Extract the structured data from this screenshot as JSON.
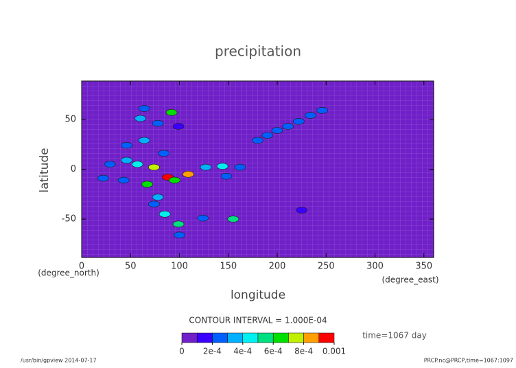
{
  "chart_data": {
    "type": "contour",
    "title": "precipitation",
    "xlabel": "longitude",
    "ylabel": "latitude",
    "xunit": "(degree_east)",
    "yunit": "(degree_north)",
    "xlim": [
      0,
      360
    ],
    "ylim": [
      -88.5,
      88.5
    ],
    "xticks": [
      0,
      50,
      100,
      150,
      200,
      250,
      300,
      350
    ],
    "yticks": [
      -50,
      0,
      50
    ],
    "contour_note": "CONTOUR INTERVAL = 1.000E-04",
    "time_label": "time=1067 day",
    "footer_left": "/usr/bin/gpview  2014-07-17",
    "footer_right": "PRCP.nc@PRCP,time=1067:1097",
    "levels": [
      0,
      0.0001,
      0.0002,
      0.0003,
      0.0004,
      0.0005,
      0.0006,
      0.0007,
      0.0008,
      0.0009,
      0.001
    ],
    "colors": [
      "#7020c8",
      "#3a00ff",
      "#0060ff",
      "#00b0ff",
      "#00f0f0",
      "#00e080",
      "#00e000",
      "#c0f000",
      "#ffa000",
      "#ff0000"
    ],
    "cbar_ticks": [
      0,
      {
        "value": 0.0002,
        "label": "2e-4"
      },
      {
        "value": 0.0004,
        "label": "4e-4"
      },
      {
        "value": 0.0006,
        "label": "6e-4"
      },
      {
        "value": 0.0008,
        "label": "8e-4"
      },
      0.001
    ],
    "points": {
      "lon": [
        92,
        64,
        60,
        78,
        99,
        64,
        46,
        84,
        46,
        29,
        57,
        74,
        88,
        95,
        109,
        127,
        144,
        162,
        67,
        43,
        22,
        78,
        74,
        85,
        99,
        124,
        155,
        148,
        100,
        180,
        190,
        200,
        211,
        222,
        234,
        246,
        225
      ],
      "lat": [
        57,
        61,
        51,
        46,
        43,
        29,
        24,
        16,
        9,
        5,
        5,
        2,
        -8,
        -11,
        -5,
        2,
        3,
        2,
        -15,
        -11,
        -9,
        -28,
        -35,
        -45,
        -55,
        -49,
        -50,
        -7,
        -66,
        29,
        34,
        39,
        43,
        48,
        54,
        59,
        -41
      ],
      "values": [
        0.0006,
        0.0002,
        0.0003,
        0.0002,
        0.0001,
        0.0003,
        0.0002,
        0.0002,
        0.0003,
        0.0002,
        0.0004,
        0.0007,
        0.0009,
        0.0006,
        0.0008,
        0.0003,
        0.0004,
        0.0002,
        0.0006,
        0.0002,
        0.0002,
        0.0003,
        0.0002,
        0.0004,
        0.0005,
        0.0002,
        0.0005,
        0.0002,
        0.0002,
        0.0002,
        0.0002,
        0.0002,
        0.0002,
        0.0002,
        0.0002,
        0.0002,
        0.0001
      ]
    }
  }
}
